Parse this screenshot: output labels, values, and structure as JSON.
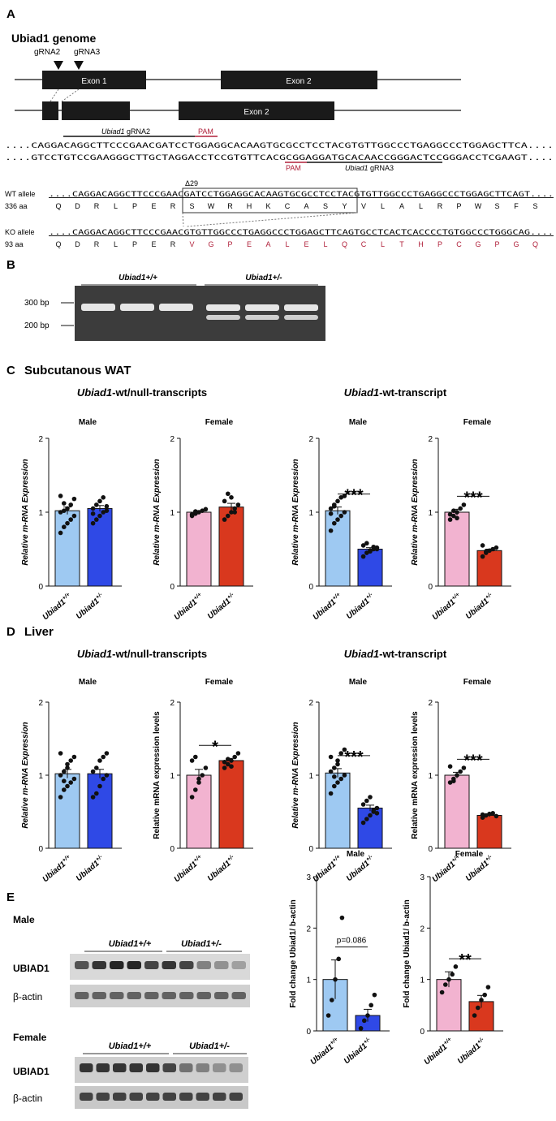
{
  "panelA": {
    "letter": "A",
    "title": "Ubiad1 genome",
    "grna2": "gRNA2",
    "grna3": "gRNA3",
    "exon1": "Exon 1",
    "exon2": "Exon 2",
    "exon2b": "Exon 2",
    "grna2_label_italic": "Ubiad1",
    "grna2_label_rest": " gRNA2",
    "pam_top": "PAM",
    "pam_bottom": "PAM",
    "grna3_label_italic": "Ubiad1",
    "grna3_label_rest": " gRNA3",
    "seq_top": "....CAGGACAGGCTTCCCGAACGATCCTGGAGGCACAAGTGCGCCTCCTACGTGTTGGCCCTGAGGCCCTGGAGCTTCA....",
    "seq_bottom": "....GTCCTGTCCGAAGGGCTTGCTAGGACCTCCGTGTTCACGCGGAGGATGCACAACCGGGACTCCGGGACCTCGAAGT....",
    "delta": "Δ29",
    "wt_label": "WT allele",
    "wt_aa_count": "336 aa",
    "wt_seq": "....CAGGACAGGCTTCCCGAACGATCCTGGAGGCACAAGTGCGCCTCCTACGTGTTGGCCCTGAGGCCCTGGAGCTTCAGT....",
    "wt_aa": [
      "Q",
      "D",
      "R",
      "L",
      "P",
      "E",
      "R",
      "S",
      "W",
      "R",
      "H",
      "K",
      "C",
      "A",
      "S",
      "Y",
      "V",
      "L",
      "A",
      "L",
      "R",
      "P",
      "W",
      "S",
      "F",
      "S"
    ],
    "ko_label": "KO allele",
    "ko_aa_count": "93 aa",
    "ko_seq": "....CAGGACAGGCTTCCCGAACGTGTTGGCCCTGAGGCCCTGGAGCTTCAGTGCCTCACTCACCCCTGTGGCCCTGGGCAG....",
    "ko_aa_black": [
      "Q",
      "D",
      "R",
      "L",
      "P",
      "E",
      "R"
    ],
    "ko_aa_red": [
      "V",
      "G",
      "P",
      "E",
      "A",
      "L",
      "E",
      "L",
      "Q",
      "C",
      "L",
      "T",
      "H",
      "P",
      "C",
      "G",
      "P",
      "G",
      "Q"
    ]
  },
  "panelB": {
    "letter": "B",
    "group1": "Ubiad1+/+",
    "group2": "Ubiad1+/-",
    "marker_300": "300 bp",
    "marker_200": "200 bp"
  },
  "panelC": {
    "letter": "C",
    "title": "Subcutanous WAT",
    "sub_left_italic": "Ubiad1",
    "sub_left_rest": "-wt/null-transcripts",
    "sub_right_italic": "Ubiad1",
    "sub_right_rest": "-wt-transcript"
  },
  "panelD": {
    "letter": "D",
    "title": "Liver",
    "sub_left_italic": "Ubiad1",
    "sub_left_rest": "-wt/null-transcripts",
    "sub_right_italic": "Ubiad1",
    "sub_right_rest": "-wt-transcript"
  },
  "panelE": {
    "letter": "E",
    "male": "Male",
    "female": "Female",
    "ubiad1": "UBIAD1",
    "bactin": "β-actin",
    "group1": "Ubiad1+/+",
    "group2": "Ubiad1+/-"
  },
  "colors": {
    "male_wt": "#9ec9f2",
    "male_het": "#2f49e6",
    "female_wt": "#f2b3d0",
    "female_het": "#d9381e",
    "red_text": "#b0203a"
  },
  "chart_data": [
    {
      "id": "C-male-total",
      "type": "bar",
      "title": "Male",
      "ylabel": "Relative m-RNA Expression",
      "categories": [
        "Ubiad1+/+",
        "Ubiad1+/-"
      ],
      "values": [
        1.02,
        1.05
      ],
      "sem": [
        0.05,
        0.04
      ],
      "ylim": [
        0,
        2
      ],
      "yticks": [
        "0",
        "1",
        "2"
      ],
      "sig": "",
      "palette": "male",
      "points": [
        [
          0.72,
          0.8,
          0.85,
          0.9,
          0.95,
          1.0,
          1.02,
          1.05,
          1.1,
          1.18,
          1.22,
          1.12
        ],
        [
          0.85,
          0.9,
          0.95,
          1.0,
          1.02,
          1.05,
          1.1,
          1.15,
          1.2,
          1.08,
          0.98
        ]
      ]
    },
    {
      "id": "C-female-total",
      "type": "bar",
      "title": "Female",
      "ylabel": "Relative m-RNA Expression",
      "categories": [
        "Ubiad1+/+",
        "Ubiad1+/-"
      ],
      "values": [
        1.0,
        1.07
      ],
      "sem": [
        0.02,
        0.05
      ],
      "ylim": [
        0,
        2
      ],
      "yticks": [
        "0",
        "1",
        "2"
      ],
      "sig": "",
      "palette": "female",
      "points": [
        [
          0.95,
          0.98,
          1.0,
          1.02,
          1.04,
          0.97,
          1.01
        ],
        [
          0.9,
          0.95,
          1.0,
          1.05,
          1.1,
          1.15,
          1.25,
          1.2,
          1.0
        ]
      ]
    },
    {
      "id": "C-male-wt",
      "type": "bar",
      "title": "Male",
      "ylabel": "Relative m-RNA Expression",
      "categories": [
        "Ubiad1+/+",
        "Ubiad1+/-"
      ],
      "values": [
        1.02,
        0.5
      ],
      "sem": [
        0.05,
        0.02
      ],
      "ylim": [
        0,
        2
      ],
      "yticks": [
        "0",
        "1",
        "2"
      ],
      "sig": "***",
      "palette": "male",
      "points": [
        [
          0.75,
          0.85,
          0.9,
          0.95,
          1.0,
          1.05,
          1.1,
          1.15,
          1.2,
          1.22,
          0.98,
          1.08
        ],
        [
          0.4,
          0.45,
          0.48,
          0.5,
          0.52,
          0.55,
          0.58,
          0.47,
          0.53,
          0.5
        ]
      ]
    },
    {
      "id": "C-female-wt",
      "type": "bar",
      "title": "Female",
      "ylabel": "Relative m-RNA Expression",
      "categories": [
        "Ubiad1+/+",
        "Ubiad1+/-"
      ],
      "values": [
        1.0,
        0.48
      ],
      "sem": [
        0.04,
        0.02
      ],
      "ylim": [
        0,
        2
      ],
      "yticks": [
        "0",
        "1",
        "2"
      ],
      "sig": "***",
      "palette": "female",
      "points": [
        [
          0.9,
          0.95,
          1.0,
          1.05,
          1.1,
          0.97,
          1.02,
          0.92
        ],
        [
          0.4,
          0.45,
          0.48,
          0.5,
          0.52,
          0.55,
          0.47
        ]
      ]
    },
    {
      "id": "D-male-total",
      "type": "bar",
      "title": "Male",
      "ylabel": "Relative m-RNA Expression",
      "categories": [
        "Ubiad1+/+",
        "Ubiad1+/-"
      ],
      "values": [
        1.02,
        1.02
      ],
      "sem": [
        0.06,
        0.06
      ],
      "ylim": [
        0,
        2
      ],
      "yticks": [
        "0",
        "1",
        "2"
      ],
      "sig": "",
      "palette": "male",
      "points": [
        [
          0.7,
          0.8,
          0.85,
          0.9,
          0.95,
          1.0,
          1.05,
          1.1,
          1.2,
          1.25,
          1.3,
          0.92,
          1.15
        ],
        [
          0.7,
          0.75,
          0.85,
          0.95,
          1.0,
          1.05,
          1.1,
          1.2,
          1.25,
          1.3
        ]
      ]
    },
    {
      "id": "D-female-total",
      "type": "bar",
      "title": "Female",
      "ylabel": "Relative mRNA expression levels",
      "categories": [
        "Ubiad1+/+",
        "Ubiad1+/-"
      ],
      "values": [
        1.0,
        1.2
      ],
      "sem": [
        0.08,
        0.03
      ],
      "ylim": [
        0,
        2
      ],
      "yticks": [
        "0",
        "1",
        "2"
      ],
      "sig": "*",
      "palette": "female",
      "points": [
        [
          0.7,
          0.8,
          0.9,
          1.0,
          1.1,
          1.2,
          1.25,
          0.95
        ],
        [
          1.1,
          1.15,
          1.2,
          1.25,
          1.3,
          1.18,
          1.22,
          1.12
        ]
      ]
    },
    {
      "id": "D-male-wt",
      "type": "bar",
      "title": "Male",
      "ylabel": "Relative m-RNA Expression",
      "categories": [
        "Ubiad1+/+",
        "Ubiad1+/-"
      ],
      "values": [
        1.03,
        0.55
      ],
      "sem": [
        0.06,
        0.04
      ],
      "ylim": [
        0,
        2
      ],
      "yticks": [
        "0",
        "1",
        "2"
      ],
      "sig": "***",
      "palette": "male",
      "points": [
        [
          0.75,
          0.85,
          0.9,
          0.95,
          1.0,
          1.05,
          1.1,
          1.2,
          1.3,
          1.35,
          1.25,
          0.98,
          1.15
        ],
        [
          0.35,
          0.4,
          0.45,
          0.5,
          0.55,
          0.6,
          0.65,
          0.7,
          0.52,
          0.48
        ]
      ]
    },
    {
      "id": "D-female-wt",
      "type": "bar",
      "title": "Female",
      "ylabel": "Relative mRNA expression levels",
      "categories": [
        "Ubiad1+/+",
        "Ubiad1+/-"
      ],
      "values": [
        1.0,
        0.45
      ],
      "sem": [
        0.04,
        0.02
      ],
      "ylim": [
        0,
        2
      ],
      "yticks": [
        "0",
        "1",
        "2"
      ],
      "sig": "***",
      "palette": "female",
      "points": [
        [
          0.9,
          0.95,
          1.0,
          1.05,
          1.1,
          1.12,
          0.92
        ],
        [
          0.42,
          0.45,
          0.47,
          0.48,
          0.44,
          0.46
        ]
      ]
    },
    {
      "id": "E-male",
      "type": "bar",
      "title": "Male",
      "ylabel": "Fold change Ubiad1/ b-actin",
      "categories": [
        "Ubiad1+/+",
        "Ubiad1+/-"
      ],
      "values": [
        1.0,
        0.3
      ],
      "sem": [
        0.38,
        0.12
      ],
      "ylim": [
        0,
        3
      ],
      "yticks": [
        "0",
        "1",
        "2",
        "3"
      ],
      "sig": "p=0.086",
      "palette": "male",
      "points": [
        [
          0.3,
          0.6,
          1.0,
          1.4,
          2.2
        ],
        [
          0.05,
          0.2,
          0.3,
          0.5,
          0.7
        ]
      ]
    },
    {
      "id": "E-female",
      "type": "bar",
      "title": "Female",
      "ylabel": "Fold change Ubiad1/ b-actin",
      "categories": [
        "Ubiad1+/+",
        "Ubiad1+/-"
      ],
      "values": [
        1.0,
        0.57
      ],
      "sem": [
        0.15,
        0.12
      ],
      "ylim": [
        0,
        3
      ],
      "yticks": [
        "0",
        "1",
        "2",
        "3"
      ],
      "sig": "**",
      "palette": "female",
      "points": [
        [
          0.75,
          0.9,
          1.0,
          1.1,
          1.25
        ],
        [
          0.3,
          0.45,
          0.6,
          0.7,
          0.85
        ]
      ]
    }
  ]
}
